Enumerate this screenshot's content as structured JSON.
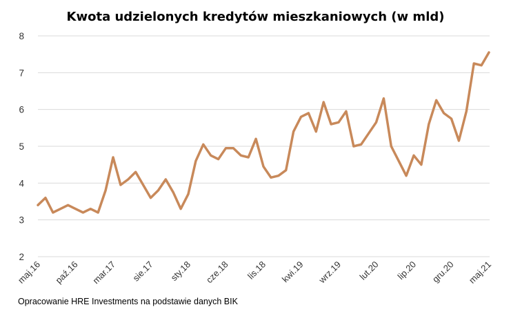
{
  "chart_data": {
    "type": "line",
    "title": "Kwota udzielonych kredytów mieszkaniowych (w mld)",
    "xlabel": "",
    "ylabel": "",
    "ylim": [
      2,
      8
    ],
    "yticks": [
      "2",
      "3",
      "4",
      "5",
      "6",
      "7",
      "8"
    ],
    "grid": true,
    "legend": "none",
    "line_color": "#C8895A",
    "x": [
      "maj.16",
      "cze.16",
      "lip.16",
      "sie.16",
      "wrz.16",
      "paź.16",
      "lis.16",
      "gru.16",
      "sty.17",
      "lut.17",
      "mar.17",
      "kwi.17",
      "maj.17",
      "cze.17",
      "lip.17",
      "sie.17",
      "wrz.17",
      "paź.17",
      "lis.17",
      "gru.17",
      "sty.18",
      "lut.18",
      "mar.18",
      "kwi.18",
      "maj.18",
      "cze.18",
      "lip.18",
      "sie.18",
      "wrz.18",
      "paź.18",
      "lis.18",
      "gru.18",
      "sty.19",
      "lut.19",
      "mar.19",
      "kwi.19",
      "maj.19",
      "cze.19",
      "lip.19",
      "sie.19",
      "wrz.19",
      "paź.19",
      "lis.19",
      "gru.19",
      "sty.20",
      "lut.20",
      "mar.20",
      "kwi.20",
      "maj.20",
      "cze.20",
      "lip.20",
      "sie.20",
      "wrz.20",
      "paź.20",
      "lis.20",
      "gru.20",
      "sty.21",
      "lut.21",
      "mar.21",
      "kwi.21",
      "maj.21"
    ],
    "x_tick_labels": [
      "maj.16",
      "paź.16",
      "mar.17",
      "sie.17",
      "sty.18",
      "cze.18",
      "lis.18",
      "kwi.19",
      "wrz.19",
      "lut.20",
      "lip.20",
      "gru.20",
      "maj.21"
    ],
    "series": [
      {
        "values": [
          3.4,
          3.6,
          3.2,
          3.3,
          3.4,
          3.3,
          3.2,
          3.3,
          3.2,
          3.8,
          4.7,
          3.95,
          4.1,
          4.3,
          3.95,
          3.6,
          3.8,
          4.1,
          3.75,
          3.3,
          3.7,
          4.6,
          5.05,
          4.75,
          4.65,
          4.95,
          4.95,
          4.75,
          4.7,
          5.2,
          4.45,
          4.15,
          4.2,
          4.35,
          5.4,
          5.8,
          5.9,
          5.4,
          6.2,
          5.6,
          5.65,
          5.95,
          5.0,
          5.05,
          5.35,
          5.65,
          6.3,
          5.0,
          4.6,
          4.2,
          4.75,
          4.5,
          5.6,
          6.25,
          5.9,
          5.75,
          5.15,
          5.95,
          7.25,
          7.2,
          7.55
        ]
      }
    ]
  },
  "source_note": "Opracowanie HRE Investments na podstawie danych BIK"
}
